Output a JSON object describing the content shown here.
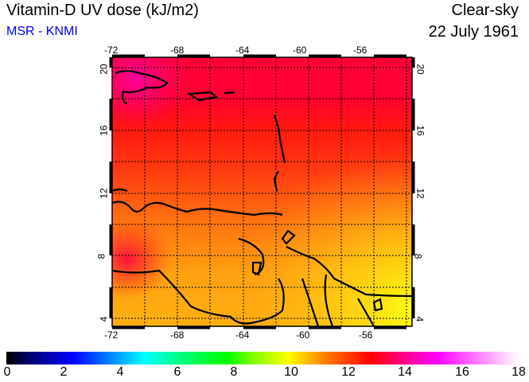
{
  "header": {
    "title": "Vitamin-D UV dose (kJ/m2)",
    "source": "MSR - KNMI",
    "condition": "Clear-sky",
    "date": "22 July 1961"
  },
  "map": {
    "lon_ticks": [
      "-72",
      "-68",
      "-64",
      "-60",
      "-56"
    ],
    "lat_ticks": [
      "20",
      "16",
      "12",
      "8",
      "4"
    ],
    "lon_range": [
      -72,
      -53.7
    ],
    "lat_range": [
      3.5,
      20.7
    ]
  },
  "colorbar": {
    "labels": [
      "0",
      "2",
      "4",
      "6",
      "8",
      "10",
      "12",
      "14",
      "16",
      "18"
    ],
    "min": 0,
    "max": 18
  }
}
